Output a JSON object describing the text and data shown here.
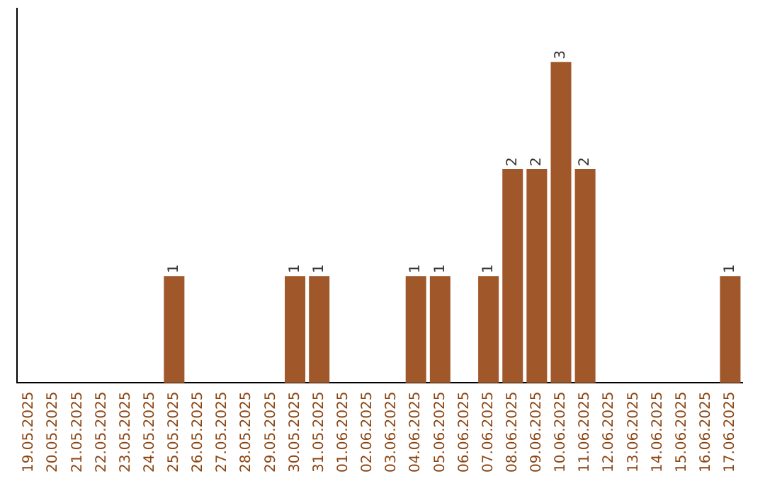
{
  "chart_data": {
    "type": "bar",
    "categories": [
      "19.05.2025",
      "20.05.2025",
      "21.05.2025",
      "22.05.2025",
      "23.05.2025",
      "24.05.2025",
      "25.05.2025",
      "26.05.2025",
      "27.05.2025",
      "28.05.2025",
      "29.05.2025",
      "30.05.2025",
      "31.05.2025",
      "01.06.2025",
      "02.06.2025",
      "03.06.2025",
      "04.06.2025",
      "05.06.2025",
      "06.06.2025",
      "07.06.2025",
      "08.06.2025",
      "09.06.2025",
      "10.06.2025",
      "11.06.2025",
      "12.06.2025",
      "13.06.2025",
      "14.06.2025",
      "15.06.2025",
      "16.06.2025",
      "17.06.2025"
    ],
    "values": [
      0,
      0,
      0,
      0,
      0,
      0,
      1,
      0,
      0,
      0,
      0,
      1,
      1,
      0,
      0,
      0,
      1,
      1,
      0,
      1,
      2,
      2,
      3,
      2,
      0,
      0,
      0,
      0,
      0,
      1
    ],
    "value_labels": [
      null,
      null,
      null,
      null,
      null,
      null,
      "1",
      null,
      null,
      null,
      null,
      "1",
      "1",
      null,
      null,
      null,
      "1",
      "1",
      null,
      "1",
      "2",
      "2",
      "3",
      "2",
      null,
      null,
      null,
      null,
      null,
      "1"
    ],
    "color": "#a0582a",
    "tick_labels": "x",
    "grid": false,
    "legend": false
  }
}
